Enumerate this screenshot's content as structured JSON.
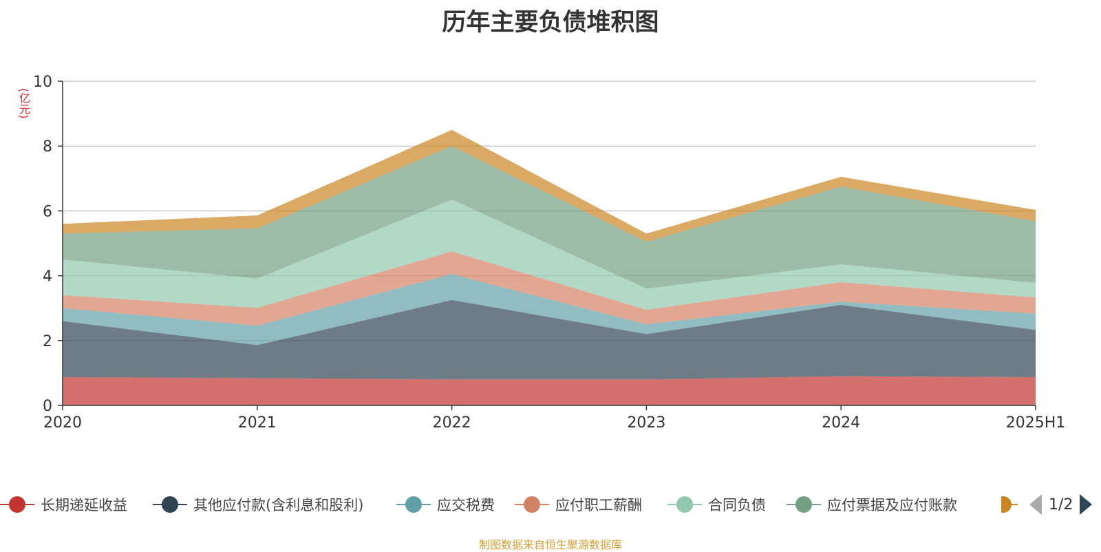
{
  "chart_data": {
    "type": "area",
    "title": "历年主要负债堆积图",
    "unit_label": "(亿元)",
    "categories": [
      "2020",
      "2021",
      "2022",
      "2023",
      "2024",
      "2025H1"
    ],
    "ylim": [
      0,
      10
    ],
    "yticks": [
      0,
      2,
      4,
      6,
      8,
      10
    ],
    "stacked": true,
    "grid": true,
    "legend_position": "bottom",
    "series": [
      {
        "name": "长期递延收益",
        "color": "#c23531",
        "values": [
          0.87,
          0.84,
          0.8,
          0.8,
          0.9,
          0.87
        ]
      },
      {
        "name": "其他应付款(含利息和股利)",
        "color": "#2f4554",
        "values": [
          1.73,
          1.02,
          2.45,
          1.4,
          2.2,
          1.46
        ]
      },
      {
        "name": "应交税费",
        "color": "#61a0a8",
        "values": [
          0.4,
          0.6,
          0.8,
          0.3,
          0.1,
          0.5
        ]
      },
      {
        "name": "应付职工薪酬",
        "color": "#d48265",
        "values": [
          0.4,
          0.55,
          0.7,
          0.45,
          0.6,
          0.5
        ]
      },
      {
        "name": "合同负债",
        "color": "#91c7ae",
        "values": [
          1.1,
          0.9,
          1.6,
          0.65,
          0.55,
          0.45
        ]
      },
      {
        "name": "应付票据及应付账款",
        "color": "#749f83",
        "values": [
          0.8,
          1.55,
          1.65,
          1.45,
          2.4,
          1.9
        ]
      },
      {
        "name": "",
        "color": "#ca8622",
        "values": [
          0.3,
          0.4,
          0.5,
          0.25,
          0.3,
          0.35
        ]
      }
    ],
    "legend_page": "1/2",
    "source_note": "制图数据来自恒生聚源数据库"
  }
}
